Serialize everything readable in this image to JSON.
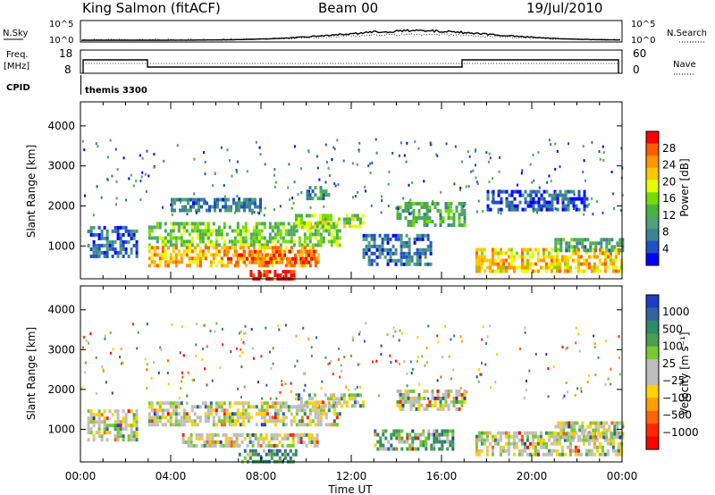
{
  "header": {
    "station": "King Salmon (fitACF)",
    "beam": "Beam 00",
    "date": "19/Jul/2010"
  },
  "status_panels": {
    "nsky_label": "N.Sky",
    "nsky_ticks": [
      "10^5",
      "10^0"
    ],
    "nsearch_label": "N.Search",
    "nsearch_ticks": [
      "10^5",
      "10^0"
    ],
    "freq_label": "Freq.",
    "freq_unit": "[MHz]",
    "freq_ticks": [
      "18",
      "8"
    ],
    "nave_label": "Nave",
    "nave_ticks": [
      "60",
      "0"
    ],
    "cpid_label": "CPID",
    "cpid_value": "themis 3300"
  },
  "chart_data": [
    {
      "type": "heatmap",
      "name": "power",
      "xlabel": "",
      "ylabel": "Slant Range [km]",
      "x_ticks": [
        "00:00",
        "04:00",
        "08:00",
        "12:00",
        "16:00",
        "20:00",
        "00:00"
      ],
      "xlim_hours": [
        0,
        24
      ],
      "y_ticks": [
        1000,
        2000,
        3000,
        4000
      ],
      "ylim_km": [
        180,
        4600
      ],
      "colorbar_label": "Power [dB]",
      "colorbar_ticks": [
        "28",
        "24",
        "20",
        "16",
        "12",
        "8",
        "4"
      ],
      "colorbar_colors": [
        "#ff0000",
        "#ff5a00",
        "#ff9600",
        "#ffc800",
        "#e6ff00",
        "#78dc00",
        "#46b43c",
        "#50a078",
        "#3c8296",
        "#1e50c8",
        "#0000ff"
      ],
      "regions": [
        {
          "t0": 0.3,
          "t1": 2.5,
          "r0": 700,
          "r1": 1500,
          "level": 0.15
        },
        {
          "t0": 3.0,
          "t1": 11.5,
          "r0": 1050,
          "r1": 1600,
          "level": 0.45
        },
        {
          "t0": 3.0,
          "t1": 10.5,
          "r0": 500,
          "r1": 1000,
          "level": 0.75
        },
        {
          "t0": 6.5,
          "t1": 10.5,
          "r0": 600,
          "r1": 900,
          "level": 0.9
        },
        {
          "t0": 7.5,
          "t1": 9.5,
          "r0": 200,
          "r1": 400,
          "level": 0.98
        },
        {
          "t0": 9.5,
          "t1": 12.5,
          "r0": 1500,
          "r1": 1800,
          "level": 0.5
        },
        {
          "t0": 12.5,
          "t1": 15.5,
          "r0": 500,
          "r1": 1300,
          "level": 0.15
        },
        {
          "t0": 14.0,
          "t1": 17.0,
          "r0": 1500,
          "r1": 2100,
          "level": 0.35
        },
        {
          "t0": 17.5,
          "t1": 24.0,
          "r0": 350,
          "r1": 950,
          "level": 0.7
        },
        {
          "t0": 21.0,
          "t1": 24.0,
          "r0": 900,
          "r1": 1200,
          "level": 0.3
        },
        {
          "t0": 4.0,
          "t1": 8.0,
          "r0": 1850,
          "r1": 2200,
          "level": 0.2
        },
        {
          "t0": 10.0,
          "t1": 11.0,
          "r0": 2200,
          "r1": 2500,
          "level": 0.3
        },
        {
          "t0": 18.0,
          "t1": 22.5,
          "r0": 1900,
          "r1": 2400,
          "level": 0.1
        }
      ]
    },
    {
      "type": "heatmap",
      "name": "velocity",
      "xlabel": "Time UT",
      "ylabel": "Slant Range [km]",
      "x_ticks": [
        "00:00",
        "04:00",
        "08:00",
        "12:00",
        "16:00",
        "20:00",
        "00:00"
      ],
      "xlim_hours": [
        0,
        24
      ],
      "y_ticks": [
        1000,
        2000,
        3000,
        4000
      ],
      "ylim_km": [
        180,
        4600
      ],
      "colorbar_label": "Velocity [m s⁻¹]",
      "colorbar_ticks": [
        "1000",
        "500",
        "100",
        "25",
        "−25",
        "−100",
        "−500",
        "−1000"
      ],
      "colorbar_colors": [
        "#1e3cc8",
        "#3264a0",
        "#2d8c64",
        "#46a050",
        "#78c832",
        "#bebebe",
        "#bebebe",
        "#ffd200",
        "#ffa000",
        "#ff6400",
        "#ff2800",
        "#ff0000"
      ],
      "regions": [
        {
          "t0": 0.3,
          "t1": 2.5,
          "r0": 700,
          "r1": 1500,
          "level": 0.5
        },
        {
          "t0": 3.0,
          "t1": 11.5,
          "r0": 1100,
          "r1": 1700,
          "level": 0.5
        },
        {
          "t0": 4.5,
          "t1": 10.5,
          "r0": 550,
          "r1": 900,
          "level": 0.5
        },
        {
          "t0": 7.0,
          "t1": 9.5,
          "r0": 200,
          "r1": 500,
          "level": 0.82
        },
        {
          "t0": 9.5,
          "t1": 12.5,
          "r0": 1600,
          "r1": 1900,
          "level": 0.5
        },
        {
          "t0": 13.0,
          "t1": 16.5,
          "r0": 500,
          "r1": 1000,
          "level": 0.72
        },
        {
          "t0": 14.0,
          "t1": 17.0,
          "r0": 1500,
          "r1": 2000,
          "level": 0.5
        },
        {
          "t0": 17.5,
          "t1": 24.0,
          "r0": 400,
          "r1": 950,
          "level": 0.5
        },
        {
          "t0": 21.0,
          "t1": 24.0,
          "r0": 800,
          "r1": 1200,
          "level": 0.5
        }
      ]
    }
  ]
}
